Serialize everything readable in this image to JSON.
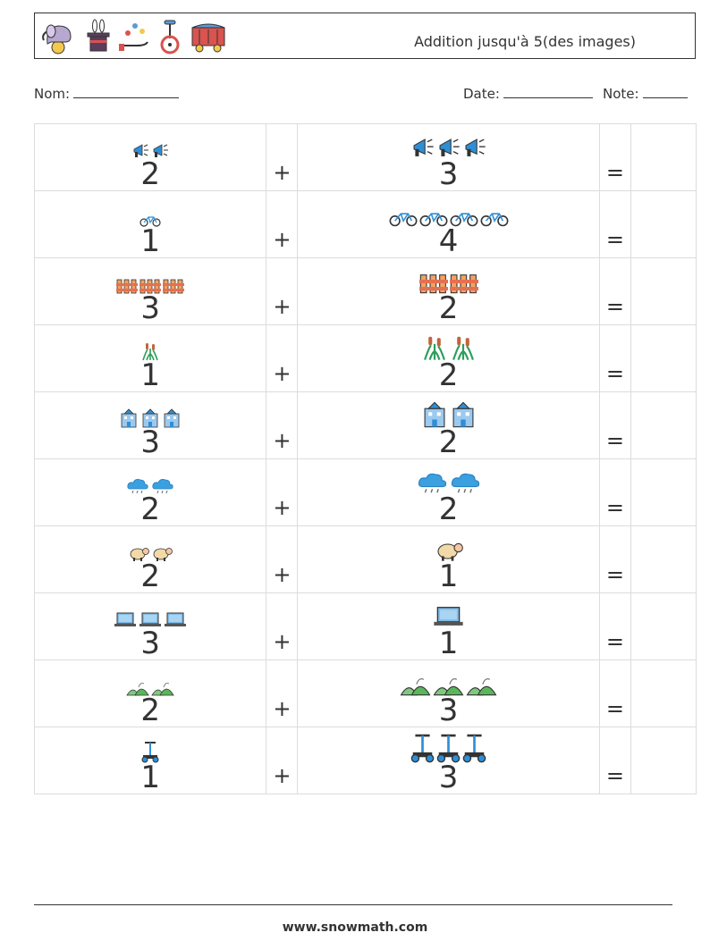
{
  "header": {
    "title": "Addition jusqu'à 5(des images)",
    "icons": [
      "elephant-on-ball-icon",
      "magic-hat-rabbit-icon",
      "juggling-hand-icon",
      "unicycle-icon",
      "circus-wagon-icon"
    ]
  },
  "meta": {
    "nom_label": "Nom:",
    "date_label": "Date:",
    "note_label": "Note:"
  },
  "problems": [
    {
      "a": "2",
      "b": "3",
      "icon": "megaphone-icon"
    },
    {
      "a": "1",
      "b": "4",
      "icon": "bicycle-icon"
    },
    {
      "a": "3",
      "b": "2",
      "icon": "fence-icon"
    },
    {
      "a": "1",
      "b": "2",
      "icon": "cattail-plant-icon"
    },
    {
      "a": "3",
      "b": "2",
      "icon": "building-icon"
    },
    {
      "a": "2",
      "b": "2",
      "icon": "rain-cloud-icon"
    },
    {
      "a": "2",
      "b": "1",
      "icon": "sheep-icon"
    },
    {
      "a": "3",
      "b": "1",
      "icon": "laptop-icon"
    },
    {
      "a": "2",
      "b": "3",
      "icon": "hills-icon"
    },
    {
      "a": "1",
      "b": "3",
      "icon": "hoverboard-scooter-icon"
    }
  ],
  "operators": {
    "plus": "+",
    "equals": "="
  },
  "footer": {
    "url": "www.snowmath.com"
  }
}
